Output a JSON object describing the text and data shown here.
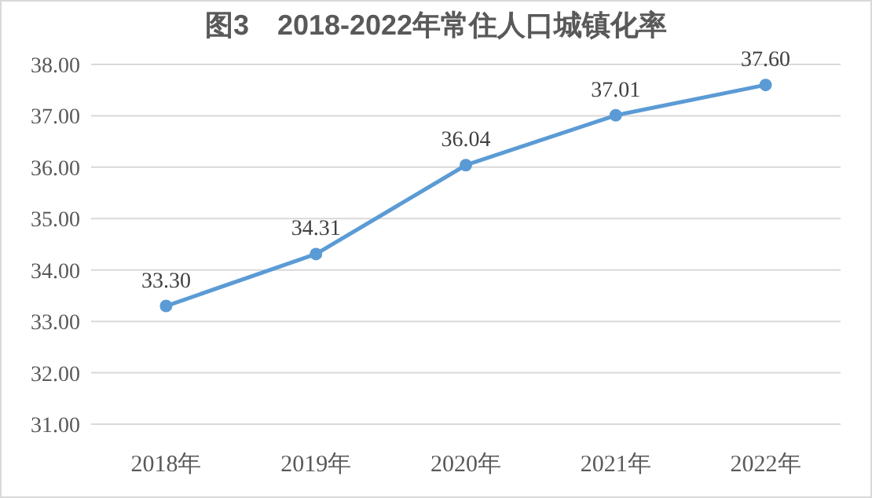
{
  "chart_data": {
    "type": "line",
    "title": "图3　2018-2022年常住人口城镇化率",
    "categories": [
      "2018年",
      "2019年",
      "2020年",
      "2021年",
      "2022年"
    ],
    "series": [
      {
        "color": "#5b9bd5",
        "values": [
          33.3,
          34.31,
          36.04,
          37.01,
          37.6
        ],
        "value_labels": [
          "33.30",
          "34.31",
          "36.04",
          "37.01",
          "37.60"
        ]
      }
    ],
    "ylim": [
      31,
      38
    ],
    "yticks": [
      {
        "value": 31,
        "label": "31.00"
      },
      {
        "value": 32,
        "label": "32.00"
      },
      {
        "value": 33,
        "label": "33.00"
      },
      {
        "value": 34,
        "label": "34.00"
      },
      {
        "value": 35,
        "label": "35.00"
      },
      {
        "value": 36,
        "label": "36.00"
      },
      {
        "value": 37,
        "label": "37.00"
      },
      {
        "value": 38,
        "label": "38.00"
      }
    ],
    "grid": "y",
    "marker": "circle",
    "line_style": "solid"
  }
}
